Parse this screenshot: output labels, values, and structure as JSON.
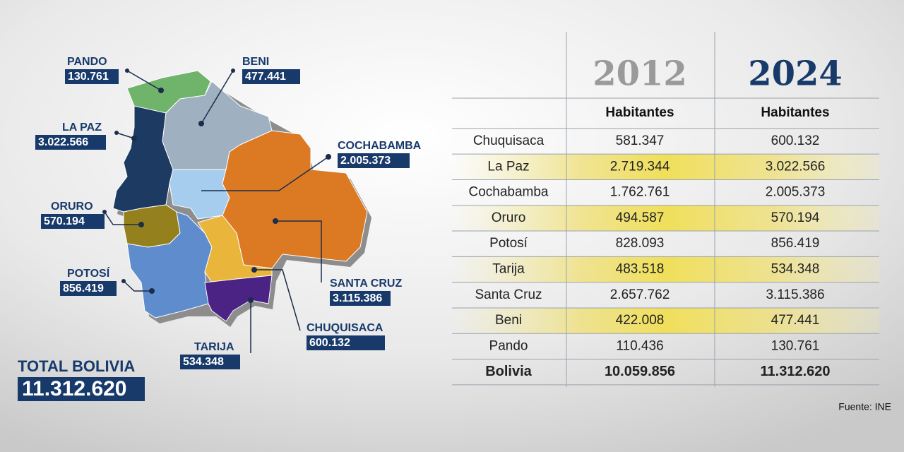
{
  "map": {
    "labels": [
      {
        "name": "PANDO",
        "value": "130.761"
      },
      {
        "name": "BENI",
        "value": "477.441"
      },
      {
        "name": "LA PAZ",
        "value": "3.022.566"
      },
      {
        "name": "COCHABAMBA",
        "value": "2.005.373"
      },
      {
        "name": "ORURO",
        "value": "570.194"
      },
      {
        "name": "POTOSÍ",
        "value": "856.419"
      },
      {
        "name": "SANTA CRUZ",
        "value": "3.115.386"
      },
      {
        "name": "CHUQUISACA",
        "value": "600.132"
      },
      {
        "name": "TARIJA",
        "value": "534.348"
      }
    ],
    "total": {
      "label": "TOTAL BOLIVIA",
      "value": "11.312.620"
    }
  },
  "table": {
    "columns": [
      {
        "year": "2012",
        "header": "Habitantes"
      },
      {
        "year": "2024",
        "header": "Habitantes"
      }
    ],
    "rows": [
      [
        "Chuquisaca",
        "581.347",
        "600.132"
      ],
      [
        "La Paz",
        "2.719.344",
        "3.022.566"
      ],
      [
        "Cochabamba",
        "1.762.761",
        "2.005.373"
      ],
      [
        "Oruro",
        "494.587",
        "570.194"
      ],
      [
        "Potosí",
        "828.093",
        "856.419"
      ],
      [
        "Tarija",
        "483.518",
        "534.348"
      ],
      [
        "Santa Cruz",
        "2.657.762",
        "3.115.386"
      ],
      [
        "Beni",
        "422.008",
        "477.441"
      ],
      [
        "Pando",
        "110.436",
        "130.761"
      ]
    ],
    "total_row": [
      "Bolivia",
      "10.059.856",
      "11.312.620"
    ]
  },
  "source": "Fuente: INE"
}
